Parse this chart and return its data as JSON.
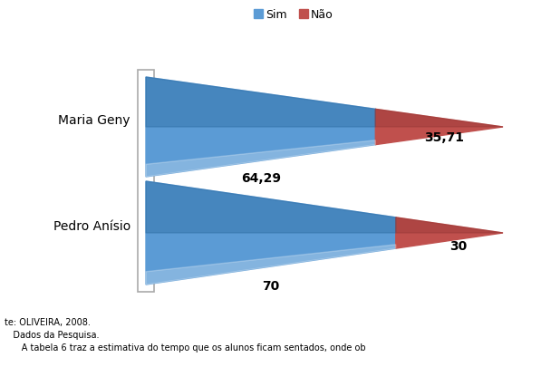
{
  "schools": [
    "Pedro Anísio",
    "Maria Geny"
  ],
  "sim_values": [
    70,
    64.29
  ],
  "nao_values": [
    30,
    35.71
  ],
  "sim_labels": [
    "70",
    "64,29"
  ],
  "nao_labels": [
    "30",
    "35,71"
  ],
  "sim_color": "#5b9bd5",
  "sim_color_dark": "#2e6da4",
  "nao_color": "#c0504d",
  "nao_color_dark": "#943634",
  "background_color": "#ffffff",
  "legend_sim": "Sim",
  "legend_nao": "Não",
  "footer_lines": [
    "te: OLIVEIRA, 2008.",
    "   Dados da Pesquisa.",
    "      A tabela 6 traz a estimativa do tempo que os alunos ficam sentados, onde ob"
  ],
  "label_fontsize": 10,
  "school_fontsize": 10,
  "legend_fontsize": 9
}
